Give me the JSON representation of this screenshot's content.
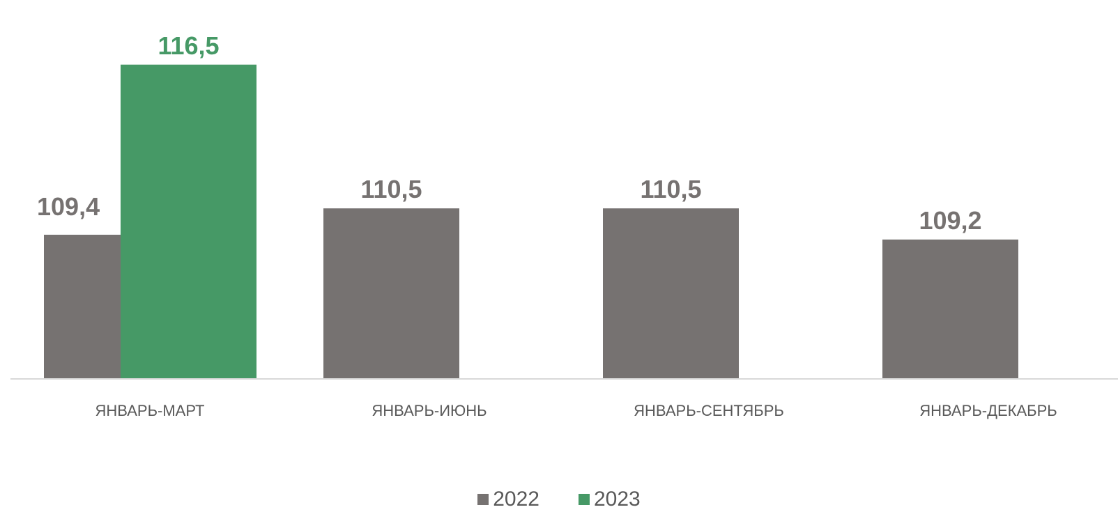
{
  "chart_data": {
    "type": "bar",
    "categories": [
      "ЯНВАРЬ-МАРТ",
      "ЯНВАРЬ-ИЮНЬ",
      "ЯНВАРЬ-СЕНТЯБРЬ",
      "ЯНВАРЬ-ДЕКАБРЬ"
    ],
    "series": [
      {
        "name": "2022",
        "values": [
          109.4,
          110.5,
          110.5,
          109.2
        ],
        "labels": [
          "109,4",
          "110,5",
          "110,5",
          "109,2"
        ],
        "color": "#767271"
      },
      {
        "name": "2023",
        "values": [
          116.5,
          null,
          null,
          null
        ],
        "labels": [
          "116,5",
          "",
          "",
          ""
        ],
        "color": "#469966"
      }
    ],
    "title": "",
    "xlabel": "",
    "ylabel": "",
    "grid": false,
    "legend": "bottom-center"
  }
}
